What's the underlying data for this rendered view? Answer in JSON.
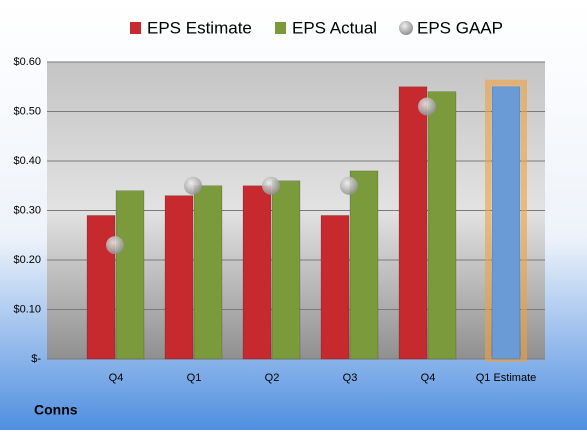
{
  "chart_data": {
    "type": "bar",
    "categories": [
      "Q4",
      "Q1",
      "Q2",
      "Q3",
      "Q4",
      "Q1 Estimate"
    ],
    "series": [
      {
        "name": "EPS Estimate",
        "color": "#c62a2f",
        "values": [
          0.29,
          0.33,
          0.35,
          0.29,
          0.55,
          0.55
        ],
        "point_colors": [
          "#c62a2f",
          "#c62a2f",
          "#c62a2f",
          "#c62a2f",
          "#c62a2f",
          "#6a9bd6"
        ]
      },
      {
        "name": "EPS Actual",
        "color": "#7a9a3c",
        "values": [
          0.34,
          0.35,
          0.36,
          0.38,
          0.54,
          null
        ]
      },
      {
        "name": "EPS GAAP",
        "color": "#a8a8a8",
        "values": [
          0.23,
          0.35,
          0.35,
          0.35,
          0.51,
          null
        ]
      }
    ],
    "ylim": [
      0,
      0.6
    ],
    "yticks": [
      {
        "value": 0,
        "label": "$-"
      },
      {
        "value": 0.1,
        "label": "$0.10"
      },
      {
        "value": 0.2,
        "label": "$0.20"
      },
      {
        "value": 0.3,
        "label": "$0.30"
      },
      {
        "value": 0.4,
        "label": "$0.40"
      },
      {
        "value": 0.5,
        "label": "$0.50"
      },
      {
        "value": 0.6,
        "label": "$0.60"
      }
    ],
    "grid": true,
    "legend": "top",
    "footer": "Conns"
  }
}
